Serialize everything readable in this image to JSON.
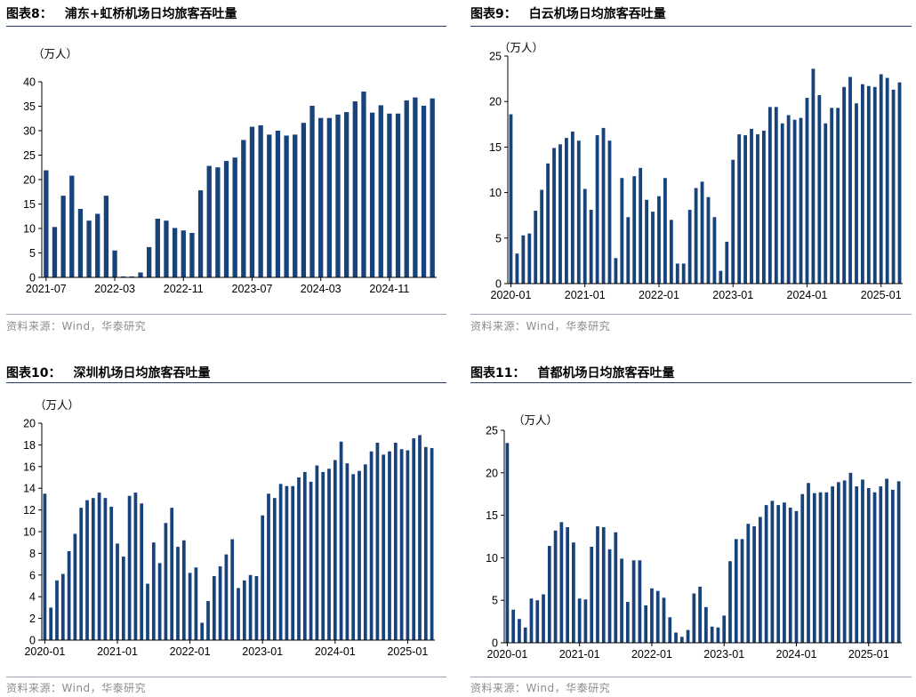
{
  "colors": {
    "bar": "#17427a",
    "rule": "#1f3a66",
    "axis": "#000000",
    "source": "#8c8c8c"
  },
  "panels": [
    {
      "figure_label": "图表8：",
      "title": "浦东+虹桥机场日均旅客吞吐量",
      "unit": "（万人）",
      "source": "资料来源：Wind，华泰研究"
    },
    {
      "figure_label": "图表9：",
      "title": "白云机场日均旅客吞吐量",
      "unit": "（万人）",
      "source": "资料来源：Wind，华泰研究"
    },
    {
      "figure_label": "图表10：",
      "title": "深圳机场日均旅客吞吐量",
      "unit": "（万人）",
      "source": "资料来源：Wind，华泰研究"
    },
    {
      "figure_label": "图表11：",
      "title": "首都机场日均旅客吞吐量",
      "unit": "（万人）",
      "source": "资料来源：Wind，华泰研究"
    }
  ],
  "chart_data": [
    {
      "type": "bar",
      "title": "浦东+虹桥机场日均旅客吞吐量",
      "ylabel": "（万人）",
      "ylim": [
        0,
        40
      ],
      "yticks": [
        0,
        5,
        10,
        15,
        20,
        25,
        30,
        35,
        40
      ],
      "grid": false,
      "x_start": "2021-07",
      "x_ticks": [
        {
          "i": 0,
          "label": "2021-07"
        },
        {
          "i": 8,
          "label": "2022-03"
        },
        {
          "i": 16,
          "label": "2022-11"
        },
        {
          "i": 24,
          "label": "2023-07"
        },
        {
          "i": 32,
          "label": "2024-03"
        },
        {
          "i": 40,
          "label": "2024-11"
        }
      ],
      "values": [
        21.9,
        10.3,
        16.7,
        20.8,
        14.0,
        11.6,
        13.0,
        16.7,
        5.5,
        0.2,
        0.2,
        1.0,
        6.2,
        12.0,
        11.6,
        10.1,
        9.6,
        9.1,
        17.8,
        22.8,
        22.5,
        23.8,
        24.5,
        28.1,
        30.8,
        31.1,
        29.2,
        30.0,
        29.0,
        29.2,
        31.6,
        35.1,
        32.6,
        32.6,
        33.3,
        33.8,
        36.0,
        38.0,
        33.7,
        35.2,
        33.5,
        33.5,
        36.2,
        36.8,
        35.1,
        36.6
      ]
    },
    {
      "type": "bar",
      "title": "白云机场日均旅客吞吐量",
      "ylabel": "（万人）",
      "ylim": [
        0,
        25
      ],
      "yticks": [
        0,
        5,
        10,
        15,
        20,
        25
      ],
      "grid": false,
      "x_start": "2020-01",
      "x_ticks": [
        {
          "i": 0,
          "label": "2020-01"
        },
        {
          "i": 12,
          "label": "2021-01"
        },
        {
          "i": 24,
          "label": "2022-01"
        },
        {
          "i": 36,
          "label": "2023-01"
        },
        {
          "i": 48,
          "label": "2024-01"
        },
        {
          "i": 60,
          "label": "2025-01"
        }
      ],
      "values": [
        18.6,
        3.3,
        5.3,
        5.5,
        8.0,
        10.3,
        13.2,
        14.9,
        15.3,
        16.0,
        16.7,
        15.7,
        10.4,
        8.1,
        16.3,
        17.1,
        15.7,
        2.8,
        11.6,
        7.3,
        11.8,
        12.7,
        9.2,
        7.9,
        9.6,
        11.6,
        7.0,
        2.2,
        2.2,
        8.1,
        10.5,
        11.2,
        9.5,
        7.3,
        1.4,
        4.6,
        13.6,
        16.4,
        16.3,
        17.0,
        16.4,
        16.8,
        19.4,
        19.4,
        17.6,
        18.5,
        18.0,
        18.2,
        20.4,
        23.6,
        20.7,
        17.6,
        19.3,
        19.3,
        21.6,
        22.7,
        19.8,
        21.9,
        21.7,
        21.6,
        23.0,
        22.6,
        21.3,
        22.1
      ]
    },
    {
      "type": "bar",
      "title": "深圳机场日均旅客吞吐量",
      "ylabel": "（万人）",
      "ylim": [
        0,
        20
      ],
      "yticks": [
        0,
        2,
        4,
        6,
        8,
        10,
        12,
        14,
        16,
        18,
        20
      ],
      "grid": false,
      "x_start": "2020-01",
      "x_ticks": [
        {
          "i": 0,
          "label": "2020-01"
        },
        {
          "i": 12,
          "label": "2021-01"
        },
        {
          "i": 24,
          "label": "2022-01"
        },
        {
          "i": 36,
          "label": "2023-01"
        },
        {
          "i": 48,
          "label": "2024-01"
        },
        {
          "i": 60,
          "label": "2025-01"
        }
      ],
      "values": [
        13.5,
        3.0,
        5.5,
        6.1,
        8.2,
        9.8,
        12.2,
        12.9,
        13.1,
        13.6,
        13.1,
        12.3,
        8.9,
        7.7,
        13.3,
        13.6,
        12.6,
        5.2,
        9.0,
        7.1,
        10.8,
        12.2,
        8.6,
        9.2,
        6.2,
        6.7,
        1.6,
        3.6,
        5.9,
        6.8,
        7.9,
        9.3,
        4.8,
        5.5,
        6.0,
        5.9,
        11.5,
        13.5,
        13.1,
        14.4,
        14.2,
        14.2,
        15.0,
        15.5,
        14.6,
        16.1,
        15.5,
        15.8,
        16.6,
        18.3,
        16.3,
        15.3,
        15.6,
        16.2,
        17.4,
        18.2,
        17.1,
        17.4,
        18.2,
        17.6,
        17.5,
        18.6,
        18.9,
        17.8,
        17.7
      ]
    },
    {
      "type": "bar",
      "title": "首都机场日均旅客吞吐量",
      "ylabel": "（万人）",
      "ylim": [
        0,
        25
      ],
      "yticks": [
        0,
        5,
        10,
        15,
        20,
        25
      ],
      "grid": false,
      "x_start": "2020-01",
      "x_ticks": [
        {
          "i": 0,
          "label": "2020-01"
        },
        {
          "i": 12,
          "label": "2021-01"
        },
        {
          "i": 24,
          "label": "2022-01"
        },
        {
          "i": 36,
          "label": "2023-01"
        },
        {
          "i": 48,
          "label": "2024-01"
        },
        {
          "i": 60,
          "label": "2025-01"
        }
      ],
      "values": [
        23.5,
        3.9,
        2.8,
        1.8,
        5.2,
        5.0,
        5.7,
        11.4,
        13.2,
        14.2,
        13.6,
        11.8,
        5.2,
        5.1,
        11.3,
        13.7,
        13.6,
        11.0,
        13.0,
        9.9,
        4.8,
        9.7,
        9.7,
        4.4,
        6.4,
        6.1,
        5.3,
        3.0,
        1.2,
        0.7,
        1.5,
        5.8,
        6.6,
        4.2,
        1.9,
        1.8,
        3.2,
        9.6,
        12.2,
        12.2,
        14.0,
        13.7,
        14.8,
        16.2,
        16.7,
        16.2,
        16.5,
        15.9,
        15.5,
        17.5,
        18.8,
        17.6,
        17.7,
        17.7,
        18.4,
        18.9,
        19.1,
        20.0,
        18.4,
        19.2,
        18.2,
        17.7,
        18.4,
        19.3,
        18.0,
        19.0
      ]
    }
  ]
}
